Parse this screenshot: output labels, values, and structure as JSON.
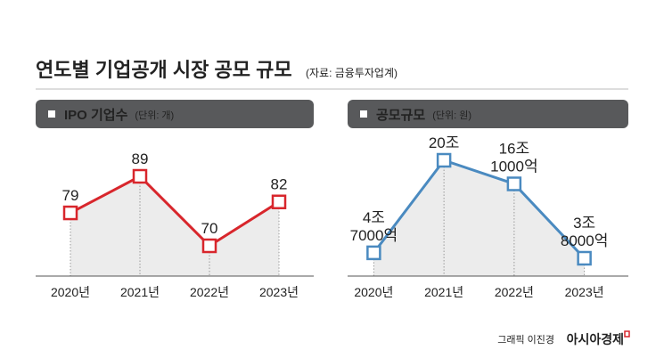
{
  "header": {
    "title": "연도별 기업공개 시장 공모 규모",
    "source": "(자료: 금융투자업계)"
  },
  "chart_data": [
    {
      "type": "line",
      "title": "IPO 기업수",
      "unit": "(단위: 개)",
      "categories": [
        "2020년",
        "2021년",
        "2022년",
        "2023년"
      ],
      "values": [
        79,
        89,
        70,
        82
      ],
      "color": "#d8262c"
    },
    {
      "type": "line",
      "title": "공모규모",
      "unit": "(단위: 원)",
      "categories": [
        "2020년",
        "2021년",
        "2022년",
        "2023년"
      ],
      "values": [
        47000,
        200000,
        161000,
        38000
      ],
      "value_labels": [
        [
          "4조",
          "7000억"
        ],
        [
          "20조"
        ],
        [
          "16조",
          "1000억"
        ],
        [
          "3조",
          "8000억"
        ]
      ],
      "color": "#4a8ac0"
    }
  ],
  "footer": {
    "credit": "그래픽 이진경",
    "brand": "아시아경제"
  }
}
